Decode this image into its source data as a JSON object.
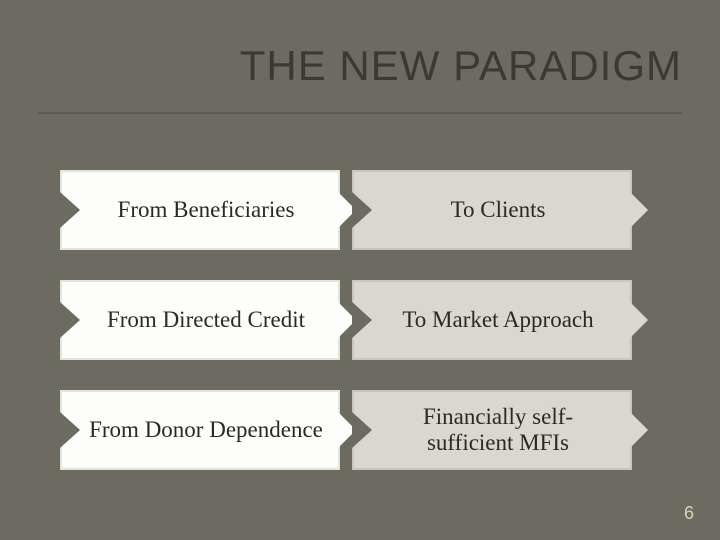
{
  "slide": {
    "title": "THE NEW PARADIGM",
    "page_number": "6",
    "background_color": "#6b6b5f",
    "title_color": "#3a3a30",
    "divider_color": "#5a5a4e",
    "page_number_color": "#d9d2b8"
  },
  "rows": [
    {
      "from": "From Beneficiaries",
      "to": "To Clients"
    },
    {
      "from": "From Directed Credit",
      "to": "To Market Approach"
    },
    {
      "from": "From Donor Dependence",
      "to": "Financially self-sufficient MFIs"
    }
  ],
  "box_styles": {
    "left_bg": "#fdfdfb",
    "left_border": "#e4e4dc",
    "right_bg": "#d8d8ce",
    "right_border": "#c6c6ba",
    "text_color": "#2a2a22",
    "font_size_pt": 17
  }
}
